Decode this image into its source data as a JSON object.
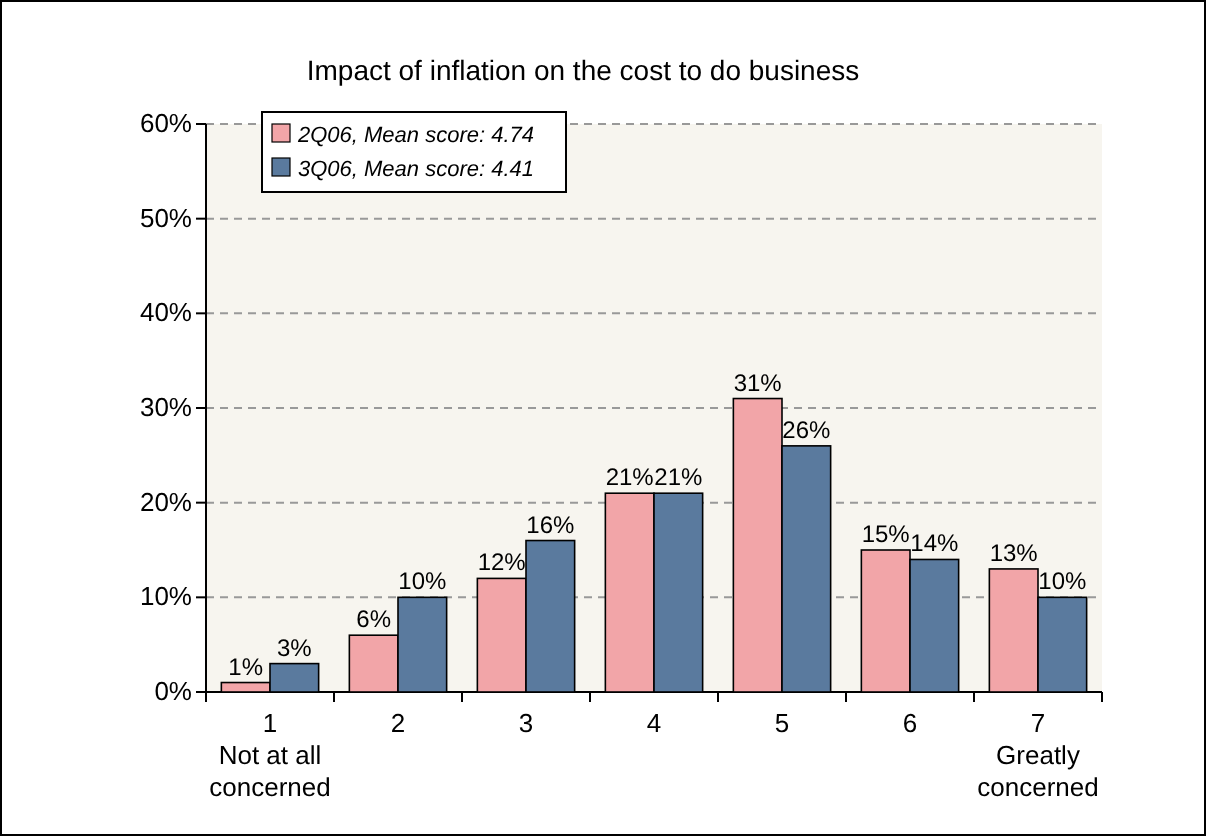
{
  "chart_data": {
    "type": "bar",
    "title": "Impact of inflation on the cost to do business",
    "categories": [
      "1\nNot at all\nconcerned",
      "2",
      "3",
      "4",
      "5",
      "6",
      "7\nGreatly\nconcerned"
    ],
    "series": [
      {
        "name": "2Q06, Mean score: 4.74",
        "color": "#f2a5a8",
        "values": [
          1,
          6,
          12,
          21,
          31,
          15,
          13
        ],
        "value_labels": [
          "1%",
          "6%",
          "12%",
          "21%",
          "31%",
          "15%",
          "13%"
        ]
      },
      {
        "name": "3Q06, Mean score: 4.41",
        "color": "#5a7a9e",
        "values": [
          3,
          10,
          16,
          21,
          26,
          14,
          10
        ],
        "value_labels": [
          "3%",
          "10%",
          "16%",
          "21%",
          "26%",
          "14%",
          "10%"
        ]
      }
    ],
    "ylim": [
      0,
      60
    ],
    "yticks": [
      {
        "value": 0,
        "label": "0%"
      },
      {
        "value": 10,
        "label": "10%"
      },
      {
        "value": 20,
        "label": "20%"
      },
      {
        "value": 30,
        "label": "30%"
      },
      {
        "value": 40,
        "label": "40%"
      },
      {
        "value": 50,
        "label": "50%"
      },
      {
        "value": 60,
        "label": "60%"
      }
    ],
    "grid": "y",
    "legend": "top left"
  }
}
